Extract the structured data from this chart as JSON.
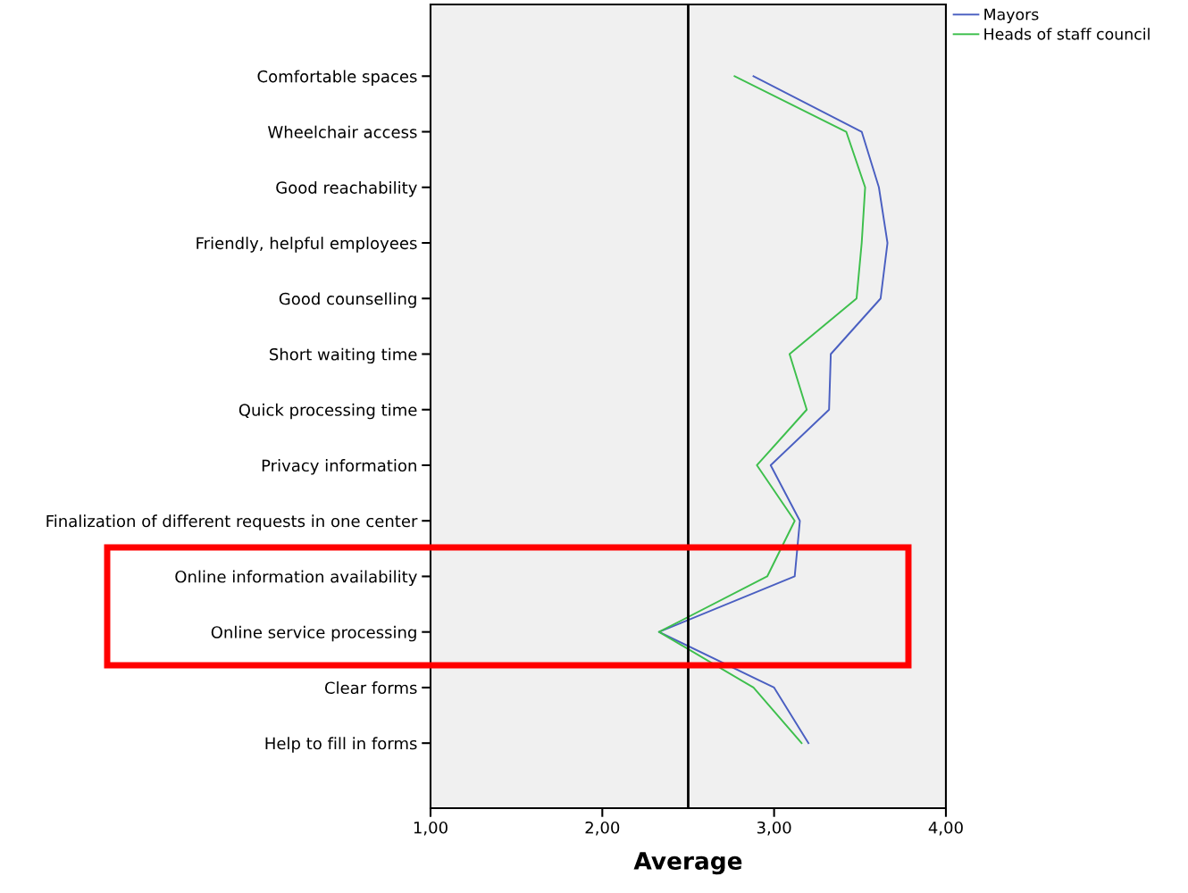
{
  "chart_data": {
    "type": "line",
    "orientation": "horizontal",
    "xlabel": "Average",
    "categories": [
      "Comfortable spaces",
      "Wheelchair access",
      "Good reachability",
      "Friendly, helpful employees",
      "Good counselling",
      "Short waiting time",
      "Quick processing time",
      "Privacy information",
      "Finalization of different requests in one center",
      "Online information availability",
      "Online service processing",
      "Clear forms",
      "Help to fill in forms"
    ],
    "series": [
      {
        "name": "Mayors",
        "color": "#4a5fc1",
        "values": [
          2.88,
          3.51,
          3.61,
          3.66,
          3.62,
          3.33,
          3.32,
          2.98,
          3.15,
          3.12,
          2.33,
          3.0,
          3.2
        ]
      },
      {
        "name": "Heads of staff council",
        "color": "#3dbf4c",
        "values": [
          2.77,
          3.42,
          3.53,
          3.51,
          3.48,
          3.09,
          3.19,
          2.9,
          3.12,
          2.96,
          2.33,
          2.88,
          3.16
        ]
      }
    ],
    "xlim": [
      1,
      4
    ],
    "xticks": [
      {
        "value": 1,
        "label": "1,00"
      },
      {
        "value": 2,
        "label": "2,00"
      },
      {
        "value": 3,
        "label": "3,00"
      },
      {
        "value": 4,
        "label": "4,00"
      }
    ],
    "ref_lines": [
      {
        "axis": "x",
        "value": 2.5,
        "color": "#000000"
      }
    ],
    "legend": "top right",
    "grid": false,
    "marker": "none",
    "line_style": "solid"
  }
}
